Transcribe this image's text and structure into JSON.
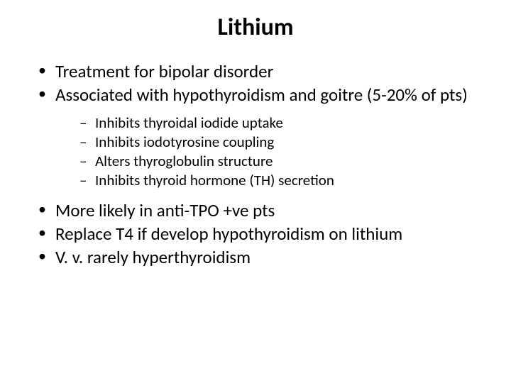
{
  "title": "Lithium",
  "bullets": {
    "b1": "Treatment for bipolar disorder",
    "b2": "Associated with hypothyroidism and goitre (5-20% of pts)",
    "b3": "More likely in anti-TPO +ve pts",
    "b4": "Replace T4 if develop hypothyroidism on lithium",
    "b5": "V. v. rarely hyperthyroidism"
  },
  "sub_bullets": {
    "s1": "Inhibits thyroidal iodide uptake",
    "s2": "Inhibits iodotyrosine coupling",
    "s3": "Alters thyroglobulin structure",
    "s4": "Inhibits thyroid hormone (TH) secretion"
  },
  "style": {
    "background_color": "#ffffff",
    "text_color": "#000000",
    "title_fontsize": 34,
    "title_weight": 700,
    "body_fontsize": 25,
    "sub_fontsize": 21,
    "font_family": "Calibri"
  }
}
